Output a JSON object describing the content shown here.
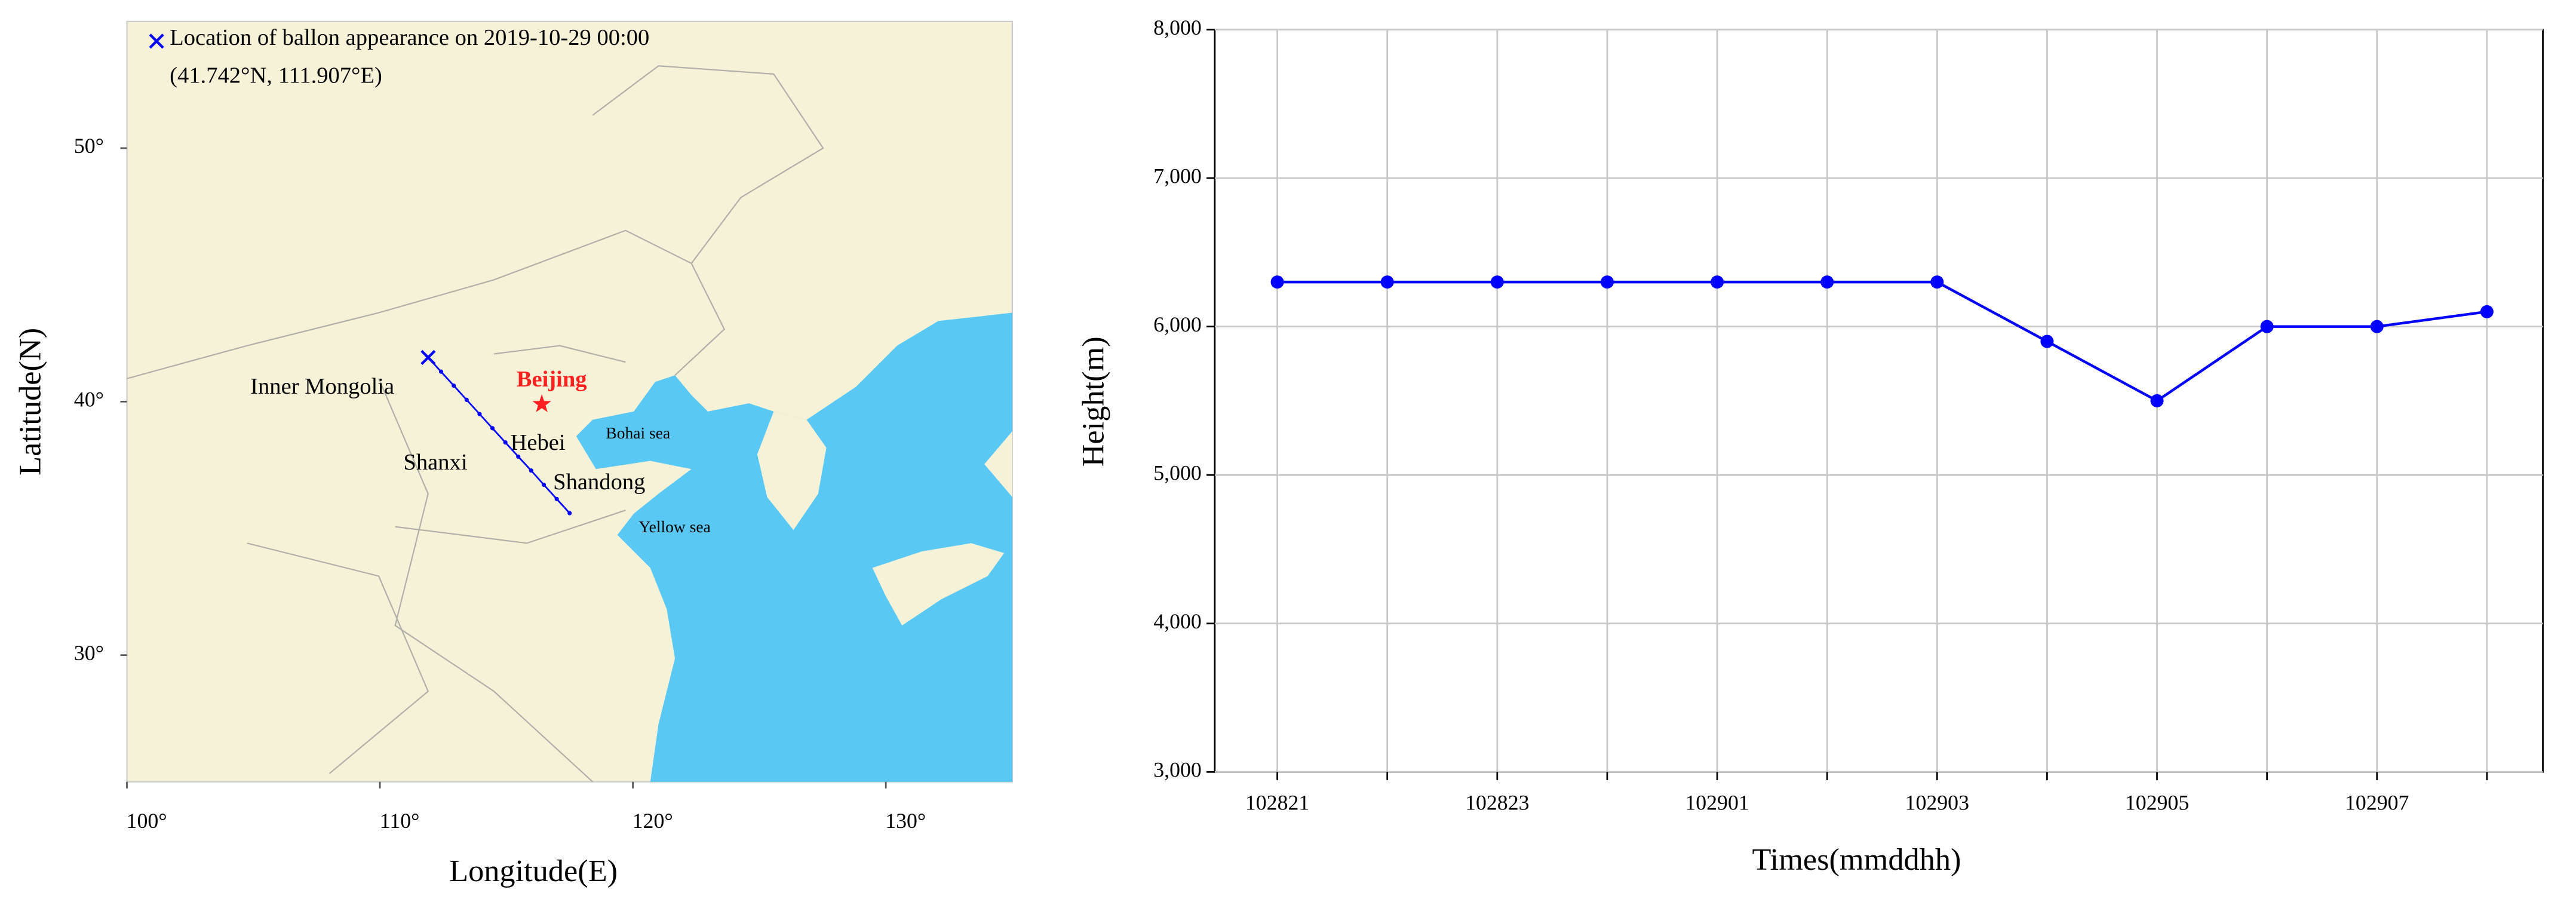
{
  "chart_data": [
    {
      "type": "map",
      "legend": [
        "Location of ballon appearance on 2019-10-29 00:00",
        "(41.742°N, 111.907°E)"
      ],
      "xlabel": "Longitude(E)",
      "ylabel": "Latitude(N)",
      "xlim": [
        100,
        135
      ],
      "ylim": [
        25,
        55
      ],
      "xticks": [
        {
          "value": 100,
          "label": "100°"
        },
        {
          "value": 110,
          "label": "110°"
        },
        {
          "value": 120,
          "label": "120°"
        },
        {
          "value": 130,
          "label": "130°"
        }
      ],
      "yticks": [
        {
          "value": 30,
          "label": "30°"
        },
        {
          "value": 40,
          "label": "40°"
        },
        {
          "value": 50,
          "label": "50°"
        }
      ],
      "track": {
        "color": "#0000ff",
        "lon": [
          111.907,
          112.42,
          112.92,
          113.43,
          113.94,
          114.45,
          114.96,
          115.47,
          115.98,
          116.48,
          116.99,
          117.5
        ],
        "lat": [
          41.742,
          41.18,
          40.63,
          40.07,
          39.51,
          38.95,
          38.39,
          37.83,
          37.28,
          36.72,
          36.16,
          35.6
        ]
      },
      "city": {
        "label": "Beijing",
        "color": "#ff2020",
        "lon": 116.4,
        "lat": 39.9
      },
      "places": [
        "Inner Mongolia",
        "Shanxi",
        "Hebei",
        "Shandong",
        "Bohai sea",
        "Yellow sea"
      ]
    },
    {
      "type": "line",
      "xlabel": "Times(mmddhh)",
      "ylabel": "Height(m)",
      "categories": [
        "102821",
        null,
        "102823",
        null,
        "102901",
        null,
        "102903",
        null,
        "102905",
        null,
        "102907",
        null
      ],
      "series": [
        {
          "name": "Height",
          "color": "#0000ff",
          "values": [
            6300,
            6300,
            6300,
            6300,
            6300,
            6300,
            6300,
            5900,
            5500,
            6000,
            6000,
            6100
          ]
        }
      ],
      "ylim": [
        3000,
        8000
      ],
      "yticks": [
        {
          "value": 3000,
          "label": "3,000"
        },
        {
          "value": 4000,
          "label": "4,000"
        },
        {
          "value": 5000,
          "label": "5,000"
        },
        {
          "value": 6000,
          "label": "6,000"
        },
        {
          "value": 7000,
          "label": "7,000"
        },
        {
          "value": 8000,
          "label": "8,000"
        }
      ],
      "grid": true
    }
  ]
}
